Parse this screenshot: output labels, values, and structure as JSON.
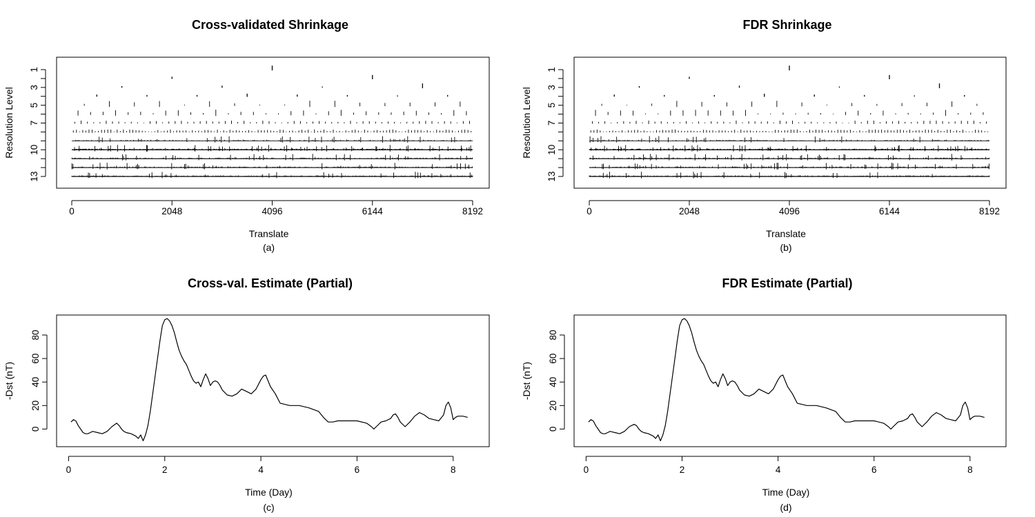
{
  "chart_data": [
    {
      "type": "wavelet-coefficient-plot",
      "title": "Cross-validated Shrinkage",
      "xlabel": "Translate",
      "ylabel": "Resolution Level",
      "caption": "(a)",
      "xticks": [
        "0",
        "2048",
        "4096",
        "6144",
        "8192"
      ],
      "yticks": [
        "1",
        "3",
        "5",
        "7",
        "10",
        "13"
      ],
      "xlim": [
        0,
        8192
      ],
      "levels": [
        1,
        2,
        3,
        4,
        5,
        6,
        7,
        8,
        9,
        10,
        11,
        12,
        13
      ],
      "grid": false,
      "series": [
        {
          "level": 1,
          "coefficients": [
            [
              4096,
              0.9
            ]
          ]
        },
        {
          "level": 2,
          "coefficients": [
            [
              2048,
              0.4
            ],
            [
              6144,
              0.8
            ]
          ]
        },
        {
          "level": 3,
          "coefficients": [
            [
              1024,
              0.3
            ],
            [
              3072,
              0.4
            ],
            [
              5120,
              0.2
            ],
            [
              7168,
              0.9
            ]
          ]
        },
        {
          "level": 4,
          "coefficients": [
            [
              512,
              0.4
            ],
            [
              1536,
              0.3
            ],
            [
              2560,
              0.3
            ],
            [
              3584,
              0.6
            ],
            [
              4608,
              0.4
            ],
            [
              5632,
              0.3
            ],
            [
              6656,
              0.2
            ],
            [
              7680,
              0.3
            ]
          ]
        }
      ]
    },
    {
      "type": "wavelet-coefficient-plot",
      "title": "FDR Shrinkage",
      "xlabel": "Translate",
      "ylabel": "Resolution Level",
      "caption": "(b)",
      "xticks": [
        "0",
        "2048",
        "4096",
        "6144",
        "8192"
      ],
      "yticks": [
        "1",
        "3",
        "5",
        "7",
        "10",
        "13"
      ],
      "xlim": [
        0,
        8192
      ],
      "levels": [
        1,
        2,
        3,
        4,
        5,
        6,
        7,
        8,
        9,
        10,
        11,
        12,
        13
      ],
      "grid": false,
      "series": [
        {
          "level": 1,
          "coefficients": [
            [
              4096,
              0.9
            ]
          ]
        },
        {
          "level": 2,
          "coefficients": [
            [
              2048,
              0.4
            ],
            [
              6144,
              0.8
            ]
          ]
        },
        {
          "level": 3,
          "coefficients": [
            [
              1024,
              0.3
            ],
            [
              3072,
              0.4
            ],
            [
              5120,
              0.2
            ],
            [
              7168,
              0.9
            ]
          ]
        },
        {
          "level": 4,
          "coefficients": [
            [
              512,
              0.4
            ],
            [
              1536,
              0.3
            ],
            [
              2560,
              0.3
            ],
            [
              3584,
              0.6
            ],
            [
              4608,
              0.4
            ],
            [
              5632,
              0.3
            ],
            [
              6656,
              0.2
            ],
            [
              7680,
              0.3
            ]
          ]
        }
      ]
    },
    {
      "type": "line",
      "title": "Cross-val. Estimate (Partial)",
      "xlabel": "Time (Day)",
      "ylabel": "-Dst (nT)",
      "caption": "(c)",
      "xticks": [
        0,
        2,
        4,
        6,
        8
      ],
      "yticks": [
        0,
        20,
        40,
        60,
        80
      ],
      "xlim": [
        -0.25,
        8.75
      ],
      "ylim": [
        -15,
        97
      ],
      "grid": false,
      "x": [
        0.05,
        0.1,
        0.15,
        0.2,
        0.25,
        0.3,
        0.35,
        0.4,
        0.45,
        0.5,
        0.6,
        0.7,
        0.8,
        0.9,
        1.0,
        1.05,
        1.1,
        1.15,
        1.2,
        1.3,
        1.4,
        1.45,
        1.5,
        1.55,
        1.6,
        1.65,
        1.7,
        1.75,
        1.8,
        1.85,
        1.9,
        1.95,
        2.0,
        2.05,
        2.1,
        2.15,
        2.2,
        2.25,
        2.3,
        2.35,
        2.4,
        2.45,
        2.5,
        2.55,
        2.6,
        2.65,
        2.7,
        2.75,
        2.8,
        2.85,
        2.9,
        2.95,
        3.0,
        3.05,
        3.1,
        3.15,
        3.2,
        3.3,
        3.4,
        3.5,
        3.6,
        3.7,
        3.8,
        3.9,
        4.0,
        4.05,
        4.1,
        4.15,
        4.2,
        4.3,
        4.4,
        4.6,
        4.8,
        5.0,
        5.2,
        5.3,
        5.4,
        5.5,
        5.6,
        5.8,
        6.0,
        6.2,
        6.3,
        6.35,
        6.4,
        6.5,
        6.6,
        6.7,
        6.75,
        6.8,
        6.85,
        6.9,
        7.0,
        7.1,
        7.2,
        7.3,
        7.4,
        7.5,
        7.6,
        7.7,
        7.8,
        7.85,
        7.9,
        7.95,
        8.0,
        8.05,
        8.1,
        8.2,
        8.3
      ],
      "series": [
        {
          "values": [
            6,
            8,
            7,
            3,
            0,
            -3,
            -4,
            -4,
            -3,
            -2,
            -3,
            -4,
            -2,
            2,
            5,
            3,
            0,
            -2,
            -3,
            -4,
            -6,
            -8,
            -5,
            -10,
            -5,
            3,
            15,
            30,
            45,
            60,
            75,
            88,
            93,
            94,
            92,
            88,
            82,
            74,
            67,
            62,
            58,
            55,
            50,
            45,
            41,
            39,
            40,
            36,
            42,
            47,
            43,
            37,
            40,
            41,
            40,
            37,
            33,
            29,
            28,
            30,
            34,
            32,
            30,
            34,
            42,
            45,
            46,
            41,
            36,
            30,
            22,
            20,
            20,
            18,
            15,
            10,
            6,
            6,
            7,
            7,
            7,
            5,
            2,
            0,
            2,
            6,
            7,
            9,
            12,
            13,
            10,
            6,
            2,
            6,
            11,
            14,
            12,
            9,
            8,
            7,
            12,
            20,
            23,
            18,
            8,
            10,
            11,
            11,
            10
          ]
        }
      ]
    },
    {
      "type": "line",
      "title": "FDR Estimate (Partial)",
      "xlabel": "Time (Day)",
      "ylabel": "-Dst (nT)",
      "caption": "(d)",
      "xticks": [
        0,
        2,
        4,
        6,
        8
      ],
      "yticks": [
        0,
        20,
        40,
        60,
        80
      ],
      "xlim": [
        -0.25,
        8.75
      ],
      "ylim": [
        -15,
        97
      ],
      "grid": false,
      "x": [
        0.05,
        0.1,
        0.15,
        0.2,
        0.25,
        0.3,
        0.35,
        0.4,
        0.45,
        0.5,
        0.6,
        0.7,
        0.8,
        0.9,
        1.0,
        1.05,
        1.1,
        1.15,
        1.2,
        1.3,
        1.4,
        1.45,
        1.5,
        1.55,
        1.6,
        1.65,
        1.7,
        1.75,
        1.8,
        1.85,
        1.9,
        1.95,
        2.0,
        2.05,
        2.1,
        2.15,
        2.2,
        2.25,
        2.3,
        2.35,
        2.4,
        2.45,
        2.5,
        2.55,
        2.6,
        2.65,
        2.7,
        2.75,
        2.8,
        2.85,
        2.9,
        2.95,
        3.0,
        3.05,
        3.1,
        3.15,
        3.2,
        3.3,
        3.4,
        3.5,
        3.6,
        3.7,
        3.8,
        3.9,
        4.0,
        4.05,
        4.1,
        4.15,
        4.2,
        4.3,
        4.4,
        4.6,
        4.8,
        5.0,
        5.2,
        5.3,
        5.4,
        5.5,
        5.6,
        5.8,
        6.0,
        6.2,
        6.3,
        6.35,
        6.4,
        6.5,
        6.6,
        6.7,
        6.75,
        6.8,
        6.85,
        6.9,
        7.0,
        7.1,
        7.2,
        7.3,
        7.4,
        7.5,
        7.6,
        7.7,
        7.8,
        7.85,
        7.9,
        7.95,
        8.0,
        8.05,
        8.1,
        8.2,
        8.3
      ],
      "series": [
        {
          "values": [
            6,
            8,
            7,
            3,
            0,
            -3,
            -4,
            -4,
            -3,
            -2,
            -3,
            -4,
            -2,
            2,
            4,
            3,
            0,
            -2,
            -3,
            -4,
            -6,
            -8,
            -5,
            -10,
            -5,
            3,
            15,
            30,
            45,
            60,
            75,
            88,
            93,
            94,
            92,
            88,
            82,
            74,
            67,
            62,
            58,
            55,
            50,
            45,
            41,
            39,
            40,
            36,
            42,
            47,
            43,
            37,
            40,
            41,
            40,
            37,
            33,
            29,
            28,
            30,
            34,
            32,
            30,
            34,
            42,
            45,
            46,
            41,
            36,
            30,
            22,
            20,
            20,
            18,
            15,
            10,
            6,
            6,
            7,
            7,
            7,
            5,
            2,
            0,
            2,
            6,
            7,
            9,
            12,
            13,
            10,
            6,
            2,
            6,
            11,
            14,
            12,
            9,
            8,
            7,
            12,
            20,
            23,
            18,
            8,
            10,
            11,
            11,
            10
          ]
        }
      ]
    }
  ]
}
